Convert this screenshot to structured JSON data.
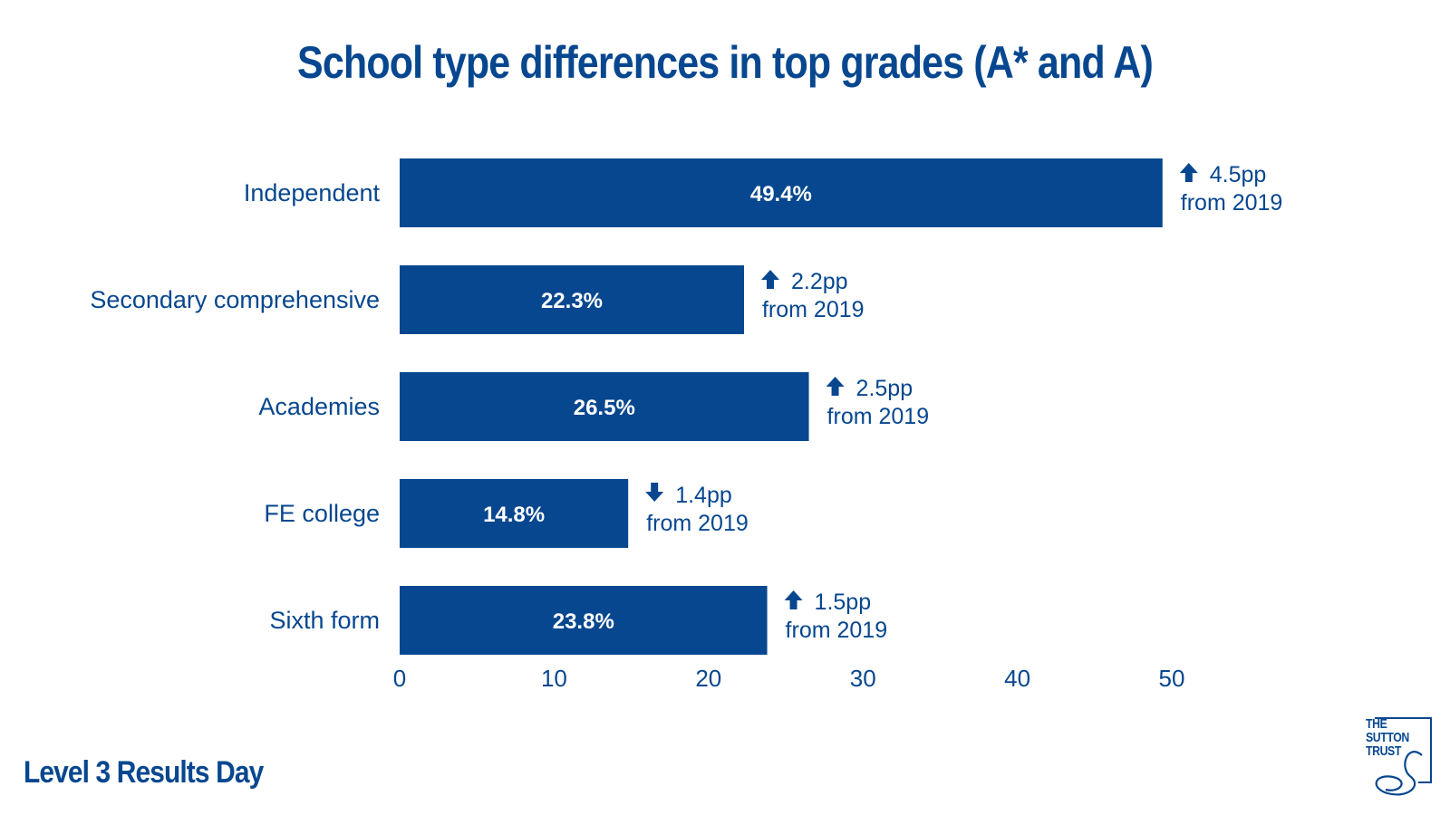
{
  "colors": {
    "primary": "#07478f",
    "bar_label": "#ffffff"
  },
  "footer": {
    "label": "Level 3 Results Day"
  },
  "logo": {
    "lines": [
      "THE",
      "SUTTON",
      "TRUST"
    ]
  },
  "chart_data": {
    "type": "bar",
    "orientation": "horizontal",
    "title": "School type differences in top grades (A* and A)",
    "xlabel": "",
    "ylabel": "",
    "xlim": [
      0,
      50
    ],
    "xticks": [
      0,
      10,
      20,
      30,
      40,
      50
    ],
    "grid": false,
    "categories": [
      "Independent",
      "Secondary comprehensive",
      "Academies",
      "FE college",
      "Sixth form"
    ],
    "values": [
      49.4,
      22.3,
      26.5,
      14.8,
      23.8
    ],
    "value_labels": [
      "49.4%",
      "22.3%",
      "26.5%",
      "14.8%",
      "23.8%"
    ],
    "annotations": [
      {
        "direction": "up",
        "change": "4.5pp",
        "note": "from 2019"
      },
      {
        "direction": "up",
        "change": "2.2pp",
        "note": "from 2019"
      },
      {
        "direction": "up",
        "change": "2.5pp",
        "note": "from 2019"
      },
      {
        "direction": "down",
        "change": "1.4pp",
        "note": "from 2019"
      },
      {
        "direction": "up",
        "change": "1.5pp",
        "note": "from 2019"
      }
    ]
  }
}
